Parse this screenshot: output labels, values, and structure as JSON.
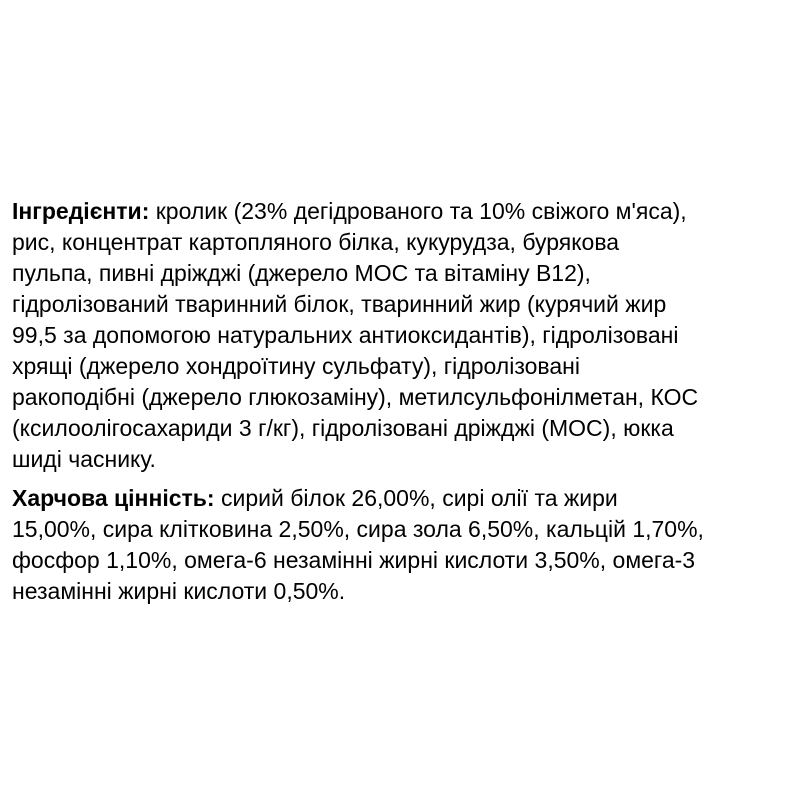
{
  "page": {
    "background_color": "#ffffff",
    "text_color": "#000000"
  },
  "paragraphs": [
    {
      "label": "Інгредієнти:",
      "lines": [
        " кролик (23% дегідрованого та 10% свіжого м'яса),",
        "рис, концентрат картопляного білка, кукурудза, бурякова",
        "пульпа, пивні дріжджі (джерело МОС та вітаміну В12),",
        "гідролізований тваринний білок, тваринний жир (курячий жир",
        "99,5 за допомогою натуральних антиоксидантів), гідролізовані",
        "хрящі (джерело хондроїтину сульфату), гідролізовані",
        "ракоподібні (джерело глюкозаміну), метилсульфонілметан, КОС",
        "(ксилоолігосахариди 3 г/кг), гідролізовані дріжджі (МОС), юкка",
        "шиді часнику."
      ]
    },
    {
      "label": "Харчова цінність:",
      "lines": [
        " сирий білок 26,00%, сирі олії та жири",
        "15,00%, сира клітковина 2,50%, сира зола 6,50%, кальцій 1,70%,",
        "фосфор 1,10%, омега-6 незамінні жирні кислоти 3,50%, омега-3",
        "незамінні жирні кислоти 0,50%."
      ]
    }
  ]
}
